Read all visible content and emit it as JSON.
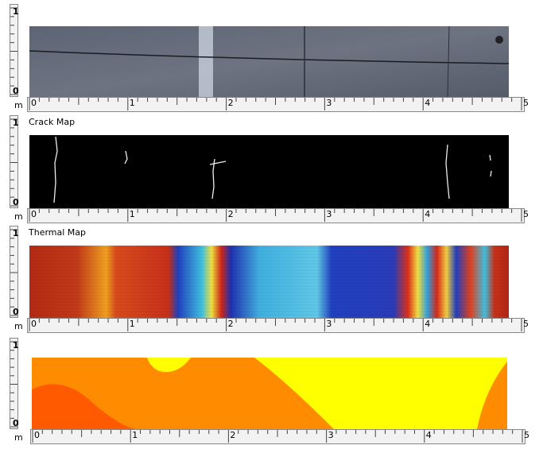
{
  "panels": [
    {
      "y_labels": [
        0,
        1
      ],
      "x_unit": "m",
      "x_labels": [
        0,
        1,
        2,
        3,
        4,
        5
      ]
    },
    {
      "title": "Crack Map",
      "y_labels": [
        0,
        1
      ],
      "x_unit": "m",
      "x_labels": [
        0,
        1,
        2,
        3,
        4,
        5
      ]
    },
    {
      "title": "Thermal Map",
      "y_labels": [
        0,
        1
      ],
      "x_unit": "m",
      "x_labels": [
        0,
        1,
        2,
        3,
        4,
        5
      ]
    },
    {
      "y_labels": [
        0,
        1
      ],
      "x_unit": "m",
      "x_labels": [
        0,
        1,
        2,
        3,
        4,
        5
      ]
    }
  ]
}
